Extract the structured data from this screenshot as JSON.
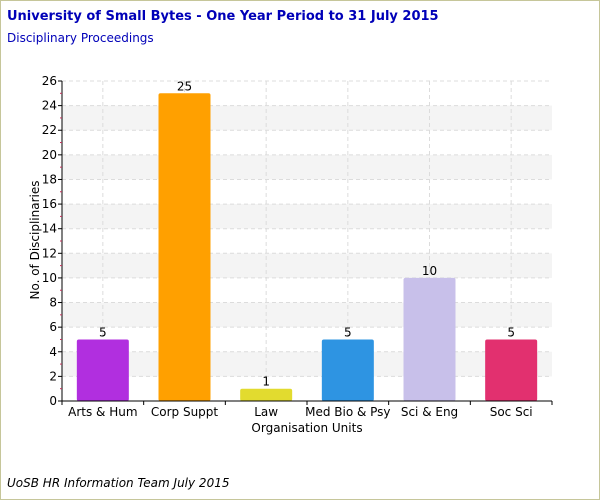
{
  "header": {
    "title": "University of Small Bytes - One Year Period to 31 July 2015",
    "subtitle": "Disciplinary Proceedings"
  },
  "footer": {
    "text": "UoSB HR Information Team July 2015"
  },
  "chart_data": {
    "type": "bar",
    "categories": [
      "Arts & Hum",
      "Corp Suppt",
      "Law",
      "Med Bio & Psy",
      "Sci & Eng",
      "Soc Sci"
    ],
    "values": [
      5,
      25,
      1,
      5,
      10,
      5
    ],
    "data_labels": [
      "5",
      "25",
      "1",
      "5",
      "10",
      "5"
    ],
    "bar_colors": [
      "#b12fdf",
      "#ffa000",
      "#e2db2f",
      "#2e94e2",
      "#c8c0ea",
      "#e2306f"
    ],
    "xlabel": "Organisation Units",
    "ylabel": "No. of Disciplinaries",
    "ylim": [
      0,
      26
    ],
    "yticks": [
      0,
      2,
      4,
      6,
      8,
      10,
      12,
      14,
      16,
      18,
      20,
      22,
      24,
      26
    ],
    "grid": true,
    "legend": "none"
  }
}
